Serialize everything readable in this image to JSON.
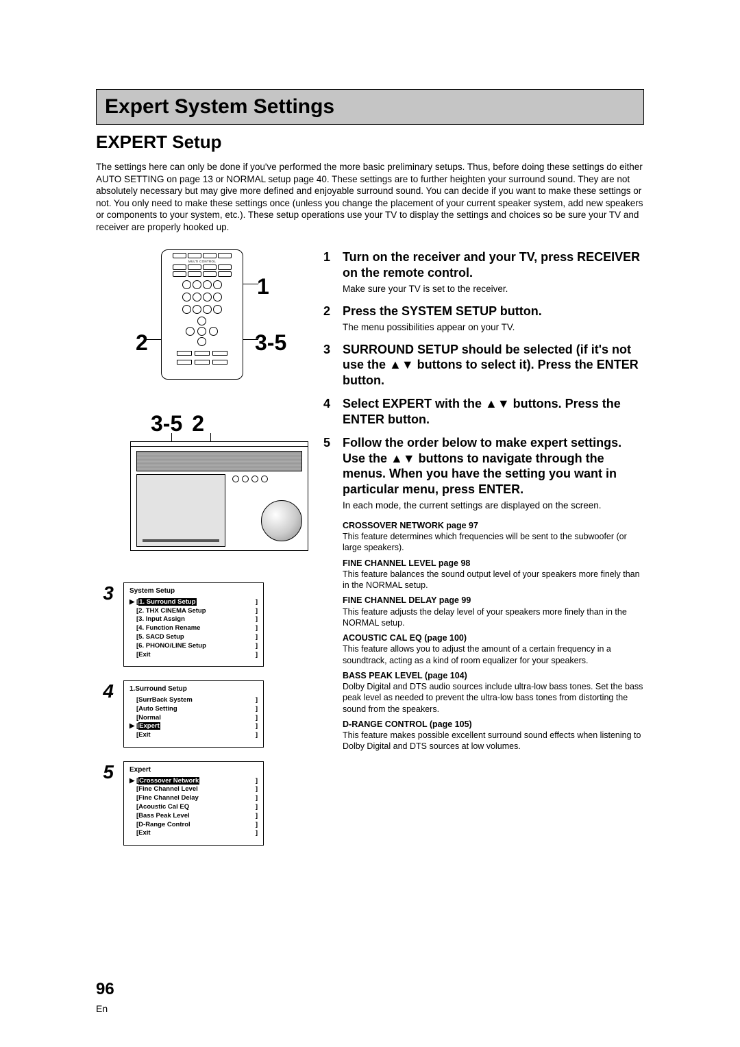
{
  "titleBar": "Expert System Settings",
  "subtitle": "EXPERT Setup",
  "intro": "The settings here can only be done if you've performed the more basic preliminary setups. Thus, before doing these settings do either AUTO SETTING on page 13 or NORMAL setup page 40. These settings are to further heighten your surround sound. They are not absolutely necessary but may give more defined and enjoyable surround sound. You can decide if you want to make these settings or not. You only need to make these settings once (unless you change the placement of your current speaker system, add new speakers or components to your system, etc.). These setup operations use your TV to display the settings and choices so be sure your TV and receiver are properly hooked up.",
  "remoteCallouts": {
    "one": "1",
    "twoLeft": "2",
    "threeFiveRight": "3-5"
  },
  "receiverCallouts": {
    "a": "3-5",
    "b": "2"
  },
  "menus": {
    "step3": {
      "title": "System Setup",
      "items": [
        {
          "cursor": "▶",
          "label": "1. Surround Setup",
          "hl": true
        },
        {
          "cursor": "",
          "label": "2. THX CINEMA Setup"
        },
        {
          "cursor": "",
          "label": "3. Input Assign"
        },
        {
          "cursor": "",
          "label": "4. Function Rename"
        },
        {
          "cursor": "",
          "label": "5. SACD Setup"
        },
        {
          "cursor": "",
          "label": "6. PHONO/LINE Setup"
        },
        {
          "cursor": "",
          "label": "Exit"
        }
      ]
    },
    "step4": {
      "title": "1.Surround Setup",
      "items": [
        {
          "cursor": "",
          "label": "SurrBack System"
        },
        {
          "cursor": "",
          "label": "Auto Setting"
        },
        {
          "cursor": "",
          "label": "Normal"
        },
        {
          "cursor": "▶",
          "label": "Expert",
          "hl": true
        },
        {
          "cursor": "",
          "label": "Exit"
        }
      ]
    },
    "step5": {
      "title": "Expert",
      "items": [
        {
          "cursor": "▶",
          "label": "Crossover Network",
          "hl": true
        },
        {
          "cursor": "",
          "label": "Fine Channel Level"
        },
        {
          "cursor": "",
          "label": "Fine Channel Delay"
        },
        {
          "cursor": "",
          "label": "Acoustic Cal EQ"
        },
        {
          "cursor": "",
          "label": "Bass Peak Level"
        },
        {
          "cursor": "",
          "label": "D-Range Control"
        },
        {
          "cursor": "",
          "label": "Exit"
        }
      ]
    }
  },
  "steps": [
    {
      "n": "1",
      "head": "Turn on the receiver and your TV, press RECEIVER on the remote control.",
      "body": "Make sure your TV is set to the receiver."
    },
    {
      "n": "2",
      "head": "Press the SYSTEM SETUP button.",
      "body": "The menu possibilities appear on your TV."
    },
    {
      "n": "3",
      "head": "SURROUND SETUP should be selected (if it's not use the ▲▼ buttons to select it). Press the ENTER button.",
      "body": ""
    },
    {
      "n": "4",
      "head": "Select EXPERT with the ▲▼ buttons. Press the ENTER button.",
      "body": ""
    },
    {
      "n": "5",
      "head": "Follow the order below to make expert settings. Use the ▲▼ buttons to navigate through the menus. When you have the setting you want in particular menu, press ENTER.",
      "body": "In each mode, the current settings are displayed on the screen."
    }
  ],
  "features": [
    {
      "t": "CROSSOVER NETWORK page 97",
      "d": "This feature determines which frequencies will be sent to the subwoofer (or large speakers)."
    },
    {
      "t": "FINE CHANNEL LEVEL page 98",
      "d": "This feature balances the sound output level of your speakers more finely than in the NORMAL setup."
    },
    {
      "t": "FINE CHANNEL DELAY page 99",
      "d": "This feature adjusts the delay level of your speakers more finely than in the NORMAL setup."
    },
    {
      "t": "ACOUSTIC CAL EQ (page 100)",
      "d": "This feature allows you to adjust the amount of a certain frequency in a soundtrack, acting as a kind of room equalizer for your speakers."
    },
    {
      "t": "BASS PEAK LEVEL (page 104)",
      "d": "Dolby Digital and DTS audio sources include ultra-low bass tones. Set the bass peak level as needed to prevent the ultra-low bass tones from distorting the sound from the speakers."
    },
    {
      "t": "D-RANGE CONTROL (page 105)",
      "d": "This feature makes possible excellent surround sound effects when listening to Dolby Digital and DTS sources at low volumes."
    }
  ],
  "pageNumber": "96",
  "lang": "En"
}
